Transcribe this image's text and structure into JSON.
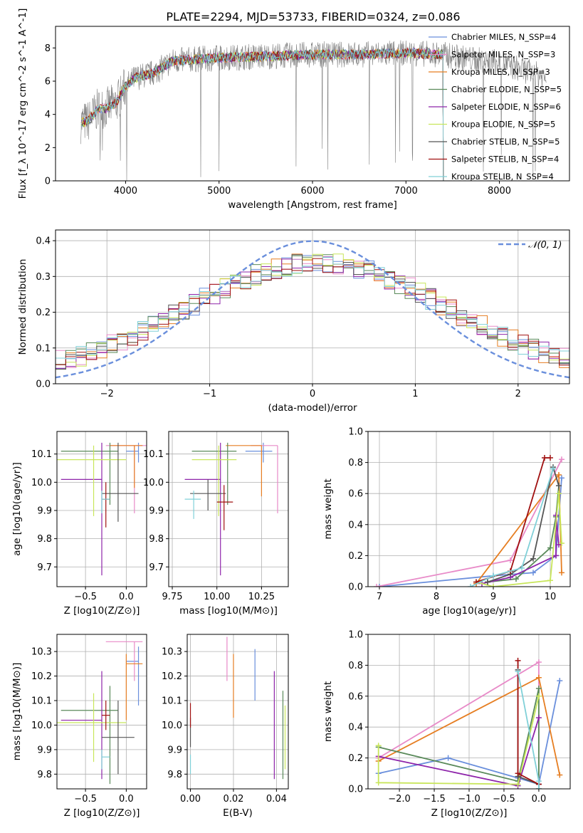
{
  "title": "PLATE=2294, MJD=53733, FIBERID=0324, z=0.086",
  "colors": {
    "blue": "#6a8fdc",
    "orange": "#e67e22",
    "green": "#5a8a5a",
    "purple": "#8e24aa",
    "yellowgreen": "#c8e65a",
    "gray": "#555555",
    "red": "#a01010",
    "cyan": "#80d0d8",
    "pink": "#e88ac8",
    "data": "#808080"
  },
  "chart_data": [
    {
      "type": "line",
      "name": "spectrum",
      "xlabel": "wavelength [Angstrom, rest frame]",
      "ylabel": "Flux [f_λ 10^-17 erg cm^-2 s^-1 A^-1]",
      "xlim": [
        3250,
        8750
      ],
      "ylim": [
        0,
        9.3
      ],
      "xticks": [
        4000,
        5000,
        6000,
        7000,
        8000
      ],
      "yticks": [
        0,
        2,
        4,
        6,
        8
      ],
      "legend_position": "right",
      "legend": [
        {
          "label": "Chabrier MILES, N_SSP=4",
          "color": "blue"
        },
        {
          "label": "Salpeter MILES, N_SSP=3",
          "color": "pink"
        },
        {
          "label": "Kroupa MILES, N_SSP=3",
          "color": "orange"
        },
        {
          "label": "Chabrier ELODIE, N_SSP=5",
          "color": "green"
        },
        {
          "label": "Salpeter ELODIE, N_SSP=6",
          "color": "purple"
        },
        {
          "label": "Kroupa ELODIE, N_SSP=5",
          "color": "yellowgreen"
        },
        {
          "label": "Chabrier STELIB, N_SSP=5",
          "color": "gray"
        },
        {
          "label": "Salpeter STELIB, N_SSP=4",
          "color": "red"
        },
        {
          "label": "Kroupa STELIB, N_SSP=4",
          "color": "cyan"
        }
      ],
      "continuum": [
        [
          3520,
          3.5
        ],
        [
          3600,
          3.6
        ],
        [
          3700,
          4.3
        ],
        [
          3800,
          4.4
        ],
        [
          3900,
          4.7
        ],
        [
          4000,
          5.7
        ],
        [
          4100,
          6.2
        ],
        [
          4300,
          6.5
        ],
        [
          4500,
          7.2
        ],
        [
          4700,
          7.3
        ],
        [
          5000,
          7.4
        ],
        [
          5500,
          7.5
        ],
        [
          6000,
          7.6
        ],
        [
          6500,
          7.6
        ],
        [
          7000,
          7.7
        ],
        [
          7400,
          7.6
        ],
        [
          7600,
          7.4
        ],
        [
          8000,
          7.1
        ],
        [
          8300,
          6.6
        ],
        [
          8500,
          6.2
        ]
      ]
    },
    {
      "type": "line",
      "name": "residual_histogram",
      "xlabel": "(data-model)/error",
      "ylabel": "Normed distribution",
      "xlim": [
        -2.5,
        2.5
      ],
      "ylim": [
        0,
        0.43
      ],
      "xticks": [
        -2,
        -1,
        0,
        1,
        2
      ],
      "yticks": [
        0.0,
        0.1,
        0.2,
        0.3,
        0.4
      ],
      "legend_position": "top-right",
      "legend": [
        {
          "label": "𝒩(0, 1)",
          "color": "blue",
          "style": "dashed"
        }
      ]
    },
    {
      "type": "scatter",
      "name": "age_vs_Z",
      "xlabel": "Z [log10(Z/Z⊙)]",
      "ylabel": "age  [log10(age/yr)]",
      "xlim": [
        -0.85,
        0.25
      ],
      "ylim": [
        9.63,
        10.18
      ],
      "xticks": [
        -0.5,
        0.0
      ],
      "yticks": [
        9.7,
        9.8,
        9.9,
        10.0,
        10.1
      ],
      "points": [
        {
          "color": "blue",
          "x": 0.15,
          "xerr": [
            0.15,
            0.0
          ],
          "y": 10.11,
          "yerr": [
            0.04,
            0.03
          ]
        },
        {
          "color": "pink",
          "x": 0.1,
          "xerr": [
            0.35,
            0.15
          ],
          "y": 10.13,
          "yerr": [
            0.24,
            0.0
          ]
        },
        {
          "color": "orange",
          "x": 0.1,
          "xerr": [
            0.3,
            0.1
          ],
          "y": 10.13,
          "yerr": [
            0.15,
            0.0
          ]
        },
        {
          "color": "green",
          "x": -0.2,
          "xerr": [
            0.6,
            0.1
          ],
          "y": 10.11,
          "yerr": [
            0.19,
            0.03
          ]
        },
        {
          "color": "purple",
          "x": -0.3,
          "xerr": [
            0.5,
            0.0
          ],
          "y": 10.01,
          "yerr": [
            0.34,
            0.13
          ]
        },
        {
          "color": "yellowgreen",
          "x": -0.4,
          "xerr": [
            0.45,
            0.4
          ],
          "y": 10.08,
          "yerr": [
            0.2,
            0.05
          ]
        },
        {
          "color": "gray",
          "x": -0.1,
          "xerr": [
            0.2,
            0.25
          ],
          "y": 9.96,
          "yerr": [
            0.1,
            0.18
          ]
        },
        {
          "color": "red",
          "x": -0.25,
          "xerr": [
            0.05,
            0.05
          ],
          "y": 9.94,
          "yerr": [
            0.1,
            0.06
          ]
        },
        {
          "color": "cyan",
          "x": -0.3,
          "xerr": [
            0.0,
            0.1
          ],
          "y": 9.94,
          "yerr": [
            0.05,
            0.03
          ]
        }
      ]
    },
    {
      "type": "scatter",
      "name": "age_vs_mass",
      "xlabel": "mass [log10(M/M⊙)]",
      "ylabel": "",
      "xlim": [
        9.73,
        10.4
      ],
      "ylim": [
        9.63,
        10.18
      ],
      "xticks": [
        9.75,
        10.0,
        10.25
      ],
      "yticks": [
        9.7,
        9.8,
        9.9,
        10.0,
        10.1
      ],
      "points": [
        {
          "color": "blue",
          "x": 10.26,
          "xerr": [
            0.1,
            0.05
          ],
          "y": 10.11,
          "yerr": [
            0.04,
            0.03
          ]
        },
        {
          "color": "pink",
          "x": 10.34,
          "xerr": [
            0.15,
            0.0
          ],
          "y": 10.13,
          "yerr": [
            0.24,
            0.0
          ]
        },
        {
          "color": "orange",
          "x": 10.25,
          "xerr": [
            0.2,
            0.0
          ],
          "y": 10.13,
          "yerr": [
            0.18,
            0.0
          ]
        },
        {
          "color": "green",
          "x": 10.06,
          "xerr": [
            0.2,
            0.05
          ],
          "y": 10.11,
          "yerr": [
            0.19,
            0.03
          ]
        },
        {
          "color": "purple",
          "x": 10.02,
          "xerr": [
            0.2,
            0.0
          ],
          "y": 10.01,
          "yerr": [
            0.34,
            0.13
          ]
        },
        {
          "color": "yellowgreen",
          "x": 10.01,
          "xerr": [
            0.15,
            0.1
          ],
          "y": 10.08,
          "yerr": [
            0.2,
            0.05
          ]
        },
        {
          "color": "gray",
          "x": 9.95,
          "xerr": [
            0.1,
            0.1
          ],
          "y": 9.96,
          "yerr": [
            0.06,
            0.05
          ]
        },
        {
          "color": "red",
          "x": 10.04,
          "xerr": [
            0.04,
            0.05
          ],
          "y": 9.93,
          "yerr": [
            0.1,
            0.06
          ]
        },
        {
          "color": "cyan",
          "x": 9.87,
          "xerr": [
            0.05,
            0.04
          ],
          "y": 9.94,
          "yerr": [
            0.07,
            0.03
          ]
        }
      ]
    },
    {
      "type": "line",
      "name": "mass_weight_vs_age",
      "xlabel": "age  [log10(age/yr)]",
      "ylabel": "mass weight",
      "xlim": [
        6.8,
        10.35
      ],
      "ylim": [
        0,
        1.0
      ],
      "xticks": [
        7,
        8,
        9,
        10
      ],
      "yticks": [
        0.0,
        0.2,
        0.4,
        0.6,
        0.8,
        1.0
      ],
      "series": [
        {
          "color": "blue",
          "x": [
            7.0,
            9.0,
            9.7,
            10.1,
            10.2
          ],
          "y": [
            0.0,
            0.07,
            0.09,
            0.2,
            0.7
          ]
        },
        {
          "color": "pink",
          "x": [
            6.95,
            9.3,
            10.2
          ],
          "y": [
            0.0,
            0.17,
            0.82
          ]
        },
        {
          "color": "orange",
          "x": [
            8.7,
            10.15,
            10.2
          ],
          "y": [
            0.02,
            0.72,
            0.09
          ]
        },
        {
          "color": "green",
          "x": [
            8.9,
            9.4,
            10.0,
            10.1,
            10.15
          ],
          "y": [
            0.03,
            0.05,
            0.25,
            0.45,
            0.65
          ]
        },
        {
          "color": "purple",
          "x": [
            8.8,
            9.3,
            10.1,
            10.1,
            10.15
          ],
          "y": [
            0.02,
            0.06,
            0.2,
            0.46,
            0.27
          ]
        },
        {
          "color": "yellowgreen",
          "x": [
            8.7,
            9.0,
            10.0,
            10.15,
            10.2
          ],
          "y": [
            0.03,
            0.0,
            0.04,
            0.6,
            0.28
          ]
        },
        {
          "color": "gray",
          "x": [
            8.9,
            9.3,
            9.7,
            10.05,
            10.15
          ],
          "y": [
            0.03,
            0.08,
            0.18,
            0.77,
            0.65
          ]
        },
        {
          "color": "red",
          "x": [
            8.7,
            9.3,
            9.9,
            10.0
          ],
          "y": [
            0.03,
            0.1,
            0.83,
            0.83
          ]
        },
        {
          "color": "cyan",
          "x": [
            8.6,
            9.0,
            9.5,
            10.05
          ],
          "y": [
            0.0,
            0.07,
            0.12,
            0.76
          ]
        }
      ]
    },
    {
      "type": "scatter",
      "name": "mass_vs_Z",
      "xlabel": "Z [log10(Z/Z⊙)]",
      "ylabel": "mass [log10(M/M⊙)]",
      "xlim": [
        -0.85,
        0.25
      ],
      "ylim": [
        9.74,
        10.37
      ],
      "xticks": [
        -0.5,
        0.0
      ],
      "yticks": [
        9.8,
        9.9,
        10.0,
        10.1,
        10.2,
        10.3
      ],
      "points": [
        {
          "color": "blue",
          "x": 0.15,
          "xerr": [
            0.15,
            0.0
          ],
          "y": 10.26,
          "yerr": [
            0.18,
            0.06
          ]
        },
        {
          "color": "pink",
          "x": 0.1,
          "xerr": [
            0.35,
            0.1
          ],
          "y": 10.34,
          "yerr": [
            0.16,
            0.0
          ]
        },
        {
          "color": "orange",
          "x": 0.0,
          "xerr": [
            0.0,
            0.2
          ],
          "y": 10.25,
          "yerr": [
            0.23,
            0.04
          ]
        },
        {
          "color": "green",
          "x": -0.2,
          "xerr": [
            0.6,
            0.1
          ],
          "y": 10.06,
          "yerr": [
            0.3,
            0.1
          ]
        },
        {
          "color": "purple",
          "x": -0.3,
          "xerr": [
            0.5,
            0.0
          ],
          "y": 10.02,
          "yerr": [
            0.24,
            0.2
          ]
        },
        {
          "color": "yellowgreen",
          "x": -0.4,
          "xerr": [
            0.45,
            0.4
          ],
          "y": 10.01,
          "yerr": [
            0.16,
            0.12
          ]
        },
        {
          "color": "gray",
          "x": -0.1,
          "xerr": [
            0.2,
            0.2
          ],
          "y": 9.95,
          "yerr": [
            0.15,
            0.15
          ]
        },
        {
          "color": "red",
          "x": -0.25,
          "xerr": [
            0.05,
            0.05
          ],
          "y": 10.04,
          "yerr": [
            0.06,
            0.06
          ]
        },
        {
          "color": "cyan",
          "x": -0.3,
          "xerr": [
            0.0,
            0.1
          ],
          "y": 9.87,
          "yerr": [
            0.05,
            0.03
          ]
        }
      ]
    },
    {
      "type": "scatter",
      "name": "mass_vs_EBV",
      "xlabel": "E(B-V)",
      "ylabel": "",
      "xlim": [
        -0.0015,
        0.0455
      ],
      "ylim": [
        9.74,
        10.37
      ],
      "xticks": [
        0.0,
        0.02,
        0.04
      ],
      "yticks": [
        9.8,
        9.9,
        10.0,
        10.1,
        10.2,
        10.3
      ],
      "points": [
        {
          "color": "blue",
          "x": 0.03,
          "y": 10.2,
          "yerr": [
            0.1,
            0.11
          ]
        },
        {
          "color": "pink",
          "x": 0.017,
          "y": 10.27,
          "yerr": [
            0.09,
            0.09
          ]
        },
        {
          "color": "orange",
          "x": 0.02,
          "y": 10.16,
          "yerr": [
            0.13,
            0.13
          ]
        },
        {
          "color": "green",
          "x": 0.043,
          "y": 9.96,
          "yerr": [
            0.18,
            0.18
          ]
        },
        {
          "color": "purple",
          "x": 0.039,
          "y": 10.0,
          "yerr": [
            0.22,
            0.22
          ]
        },
        {
          "color": "yellowgreen",
          "x": 0.044,
          "y": 9.95,
          "yerr": [
            0.13,
            0.13
          ]
        },
        {
          "color": "gray",
          "x": 0.0,
          "y": 9.97,
          "yerr": [
            0.06,
            0.06
          ]
        },
        {
          "color": "red",
          "x": 0.0,
          "y": 10.04,
          "yerr": [
            0.05,
            0.05
          ]
        },
        {
          "color": "cyan",
          "x": 0.0,
          "y": 9.84,
          "yerr": [
            0.04,
            0.04
          ]
        }
      ]
    },
    {
      "type": "line",
      "name": "mass_weight_vs_Z",
      "xlabel": "Z [log10(Z/Z⊙)]",
      "ylabel": "mass weight",
      "xlim": [
        -2.45,
        0.45
      ],
      "ylim": [
        0,
        1.0
      ],
      "xticks": [
        -2.0,
        -1.5,
        -1.0,
        -0.5,
        0.0
      ],
      "yticks": [
        0.0,
        0.2,
        0.4,
        0.6,
        0.8,
        1.0
      ],
      "series": [
        {
          "color": "blue",
          "x": [
            -2.3,
            -1.3,
            -0.3,
            0.0,
            0.3
          ],
          "y": [
            0.1,
            0.2,
            0.07,
            0.03,
            0.7
          ]
        },
        {
          "color": "pink",
          "x": [
            -2.3,
            0.0,
            0.0
          ],
          "y": [
            0.2,
            0.82,
            0.0
          ]
        },
        {
          "color": "orange",
          "x": [
            -2.3,
            0.0,
            0.3
          ],
          "y": [
            0.18,
            0.72,
            0.09
          ]
        },
        {
          "color": "green",
          "x": [
            -2.3,
            -0.3,
            0.0,
            0.0
          ],
          "y": [
            0.27,
            0.05,
            0.65,
            0.0
          ]
        },
        {
          "color": "purple",
          "x": [
            -2.3,
            -0.3,
            0.0
          ],
          "y": [
            0.21,
            0.02,
            0.46
          ]
        },
        {
          "color": "yellowgreen",
          "x": [
            -2.3,
            -2.3,
            -0.3,
            0.0
          ],
          "y": [
            0.28,
            0.04,
            0.03,
            0.6
          ]
        },
        {
          "color": "gray",
          "x": [
            -0.3,
            -0.3,
            0.0
          ],
          "y": [
            0.77,
            0.08,
            0.03
          ]
        },
        {
          "color": "red",
          "x": [
            -0.3,
            -0.3,
            0.0
          ],
          "y": [
            0.83,
            0.1,
            0.03
          ]
        },
        {
          "color": "cyan",
          "x": [
            -0.3,
            0.0,
            0.0
          ],
          "y": [
            0.76,
            0.05,
            0.0
          ]
        }
      ]
    }
  ]
}
